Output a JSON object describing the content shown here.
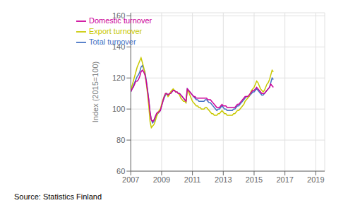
{
  "chart_data": {
    "type": "line",
    "ylabel": "Index (2015=100)",
    "source": "Source: Statistics Finland",
    "xlim": [
      2007.0,
      2019.58
    ],
    "ylim": [
      60,
      162
    ],
    "yticks": [
      60,
      80,
      100,
      120,
      140,
      160
    ],
    "xticks": [
      2007,
      2009,
      2011,
      2013,
      2015,
      2017,
      2019
    ],
    "grid": true,
    "legend": "upper left",
    "x": [
      2007,
      2007.0833,
      2007.1667,
      2007.25,
      2007.3333,
      2007.4167,
      2007.5,
      2007.5833,
      2007.6667,
      2007.75,
      2007.8333,
      2007.9167,
      2008,
      2008.0833,
      2008.1667,
      2008.25,
      2008.3333,
      2008.4167,
      2008.5,
      2008.5833,
      2008.6667,
      2008.75,
      2008.8333,
      2008.9167,
      2009,
      2009.0833,
      2009.1667,
      2009.25,
      2009.3333,
      2009.4167,
      2009.5,
      2009.5833,
      2009.6667,
      2009.75,
      2009.8333,
      2009.9167,
      2010,
      2010.0833,
      2010.1667,
      2010.25,
      2010.3333,
      2010.4167,
      2010.5,
      2010.5833,
      2010.6667,
      2010.75,
      2010.8333,
      2010.9167,
      2011,
      2011.0833,
      2011.1667,
      2011.25,
      2011.3333,
      2011.4167,
      2011.5,
      2011.5833,
      2011.6667,
      2011.75,
      2011.8333,
      2011.9167,
      2012,
      2012.0833,
      2012.1667,
      2012.25,
      2012.3333,
      2012.4167,
      2012.5,
      2012.5833,
      2012.6667,
      2012.75,
      2012.8333,
      2012.9167,
      2013,
      2013.0833,
      2013.1667,
      2013.25,
      2013.3333,
      2013.4167,
      2013.5,
      2013.5833,
      2013.6667,
      2013.75,
      2013.8333,
      2013.9167,
      2014,
      2014.0833,
      2014.1667,
      2014.25,
      2014.3333,
      2014.4167,
      2014.5,
      2014.5833,
      2014.6667,
      2014.75,
      2014.8333,
      2014.9167,
      2015,
      2015.0833,
      2015.1667,
      2015.25,
      2015.3333,
      2015.4167,
      2015.5,
      2015.5833,
      2015.6667,
      2015.75,
      2015.8333,
      2015.9167,
      2016,
      2016.0833,
      2016.1667,
      2016.25
    ],
    "series": [
      {
        "name": "Total turnover",
        "color": "#4472C4",
        "values": [
          111,
          113,
          115,
          117,
          119,
          121,
          122,
          124,
          127,
          128,
          126,
          124,
          119,
          113,
          106,
          98,
          93,
          91,
          92,
          94,
          96,
          97,
          98,
          99,
          102,
          105,
          107,
          109,
          110,
          109,
          110,
          110,
          111,
          112,
          112,
          111,
          111,
          110,
          110,
          109,
          108,
          107,
          106,
          105,
          113,
          112,
          111,
          110,
          109,
          108,
          107,
          106,
          106,
          105,
          105,
          105,
          105,
          105,
          106,
          106,
          105,
          104,
          104,
          103,
          102,
          101,
          100,
          99,
          100,
          100,
          101,
          102,
          101,
          100,
          100,
          99,
          99,
          99,
          99,
          99,
          100,
          100,
          101,
          102,
          102,
          103,
          104,
          105,
          106,
          107,
          108,
          108,
          108,
          109,
          110,
          111,
          111,
          112,
          113,
          112,
          111,
          110,
          109,
          109,
          110,
          111,
          112,
          113,
          114,
          117,
          120,
          119
        ]
      },
      {
        "name": "Export turnover",
        "color": "#C8C800",
        "values": [
          112,
          115,
          118,
          121,
          124,
          127,
          129,
          131,
          133,
          130,
          127,
          123,
          117,
          110,
          102,
          92,
          88,
          89,
          90,
          92,
          95,
          97,
          99,
          100,
          103,
          106,
          108,
          110,
          110,
          108,
          109,
          111,
          112,
          113,
          112,
          111,
          111,
          110,
          109,
          107,
          106,
          105,
          105,
          104,
          112,
          111,
          109,
          107,
          105,
          104,
          103,
          102,
          102,
          101,
          101,
          100,
          100,
          100,
          101,
          101,
          100,
          99,
          98,
          97,
          97,
          96,
          96,
          96,
          97,
          97,
          98,
          99,
          98,
          97,
          97,
          96,
          96,
          96,
          96,
          96,
          97,
          97,
          98,
          99,
          99,
          100,
          101,
          102,
          103,
          105,
          106,
          107,
          108,
          110,
          112,
          113,
          114,
          116,
          118,
          117,
          115,
          113,
          112,
          111,
          112,
          114,
          116,
          117,
          119,
          122,
          125,
          124
        ]
      },
      {
        "name": "Domestic turnover",
        "color": "#CC0099",
        "values": [
          111,
          113,
          114,
          116,
          118,
          118,
          119,
          121,
          124,
          125,
          124,
          122,
          118,
          112,
          106,
          98,
          93,
          92,
          93,
          95,
          97,
          98,
          98,
          99,
          102,
          105,
          108,
          110,
          110,
          109,
          110,
          110,
          111,
          112,
          112,
          111,
          111,
          110,
          110,
          109,
          108,
          107,
          106,
          105,
          113,
          112,
          111,
          110,
          109,
          108,
          108,
          107,
          107,
          107,
          107,
          107,
          107,
          107,
          107,
          107,
          106,
          106,
          106,
          105,
          104,
          103,
          102,
          101,
          101,
          101,
          102,
          103,
          102,
          102,
          102,
          101,
          101,
          101,
          101,
          101,
          101,
          101,
          102,
          103,
          103,
          104,
          105,
          106,
          107,
          108,
          108,
          108,
          109,
          110,
          111,
          112,
          112,
          113,
          114,
          113,
          112,
          111,
          110,
          110,
          110,
          111,
          112,
          113,
          114,
          116,
          115,
          114
        ]
      }
    ]
  }
}
